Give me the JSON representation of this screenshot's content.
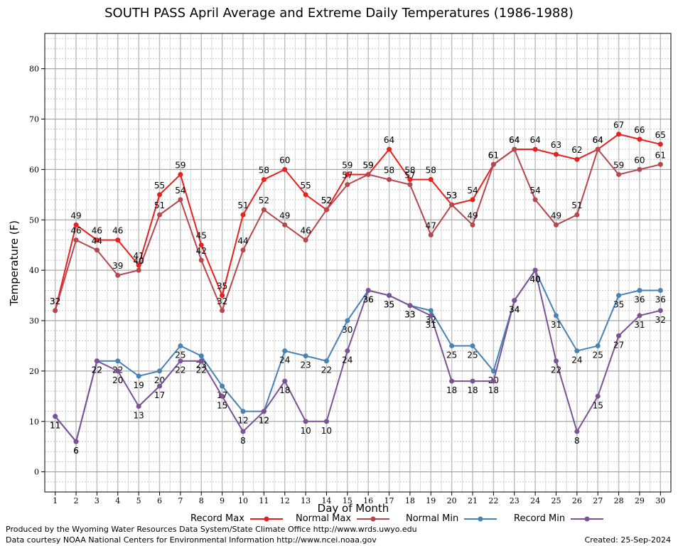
{
  "chart_data": {
    "type": "line",
    "title": "SOUTH PASS April Average and Extreme Daily Temperatures (1986-1988)",
    "xlabel": "Day of Month",
    "ylabel": "Temperature (F)",
    "x": [
      1,
      2,
      3,
      4,
      5,
      6,
      7,
      8,
      9,
      10,
      11,
      12,
      13,
      14,
      15,
      16,
      17,
      18,
      19,
      20,
      21,
      22,
      23,
      24,
      25,
      26,
      27,
      28,
      29,
      30
    ],
    "xlim": [
      0.5,
      30.5
    ],
    "ylim": [
      -4,
      87
    ],
    "yticks": [
      0,
      10,
      20,
      30,
      40,
      50,
      60,
      70,
      80
    ],
    "grid": true,
    "legend_position": "bottom",
    "series": [
      {
        "name": "Record Max",
        "color": "#e8201e",
        "values": [
          32,
          49,
          46,
          46,
          41,
          55,
          59,
          45,
          35,
          51,
          58,
          60,
          55,
          52,
          59,
          59,
          64,
          58,
          58,
          53,
          54,
          61,
          64,
          64,
          63,
          62,
          64,
          67,
          66,
          65
        ]
      },
      {
        "name": "Normal Max",
        "color": "#b5474f",
        "values": [
          32,
          46,
          44,
          39,
          40,
          51,
          54,
          42,
          32,
          44,
          52,
          49,
          46,
          52,
          57,
          59,
          58,
          57,
          47,
          53,
          49,
          61,
          64,
          54,
          49,
          51,
          64,
          59,
          60,
          61
        ]
      },
      {
        "name": "Normal Min",
        "color": "#4682b4",
        "values": [
          11,
          6,
          22,
          22,
          19,
          20,
          25,
          23,
          17,
          12,
          12,
          24,
          23,
          22,
          30,
          36,
          35,
          33,
          32,
          25,
          25,
          20,
          34,
          40,
          31,
          24,
          25,
          35,
          36,
          36
        ]
      },
      {
        "name": "Record Min",
        "color": "#7b5294",
        "values": [
          11,
          6,
          22,
          20,
          13,
          17,
          22,
          22,
          15,
          8,
          12,
          18,
          10,
          10,
          24,
          36,
          35,
          33,
          31,
          18,
          18,
          18,
          34,
          40,
          22,
          8,
          15,
          27,
          31,
          32
        ]
      }
    ]
  },
  "footer": {
    "left_line1": "Produced by the Wyoming Water Resources Data System/State Climate Office http://www.wrds.uwyo.edu",
    "left_line2": "Data courtesy NOAA National Centers for Environmental Information http://www.ncei.noaa.gov",
    "created": "Created:  25-Sep-2024"
  }
}
